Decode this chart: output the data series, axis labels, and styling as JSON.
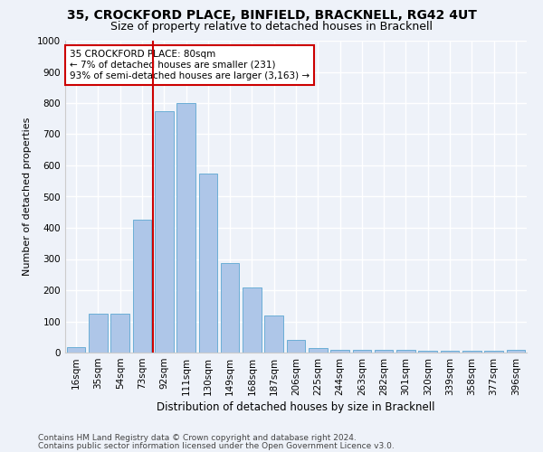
{
  "title1": "35, CROCKFORD PLACE, BINFIELD, BRACKNELL, RG42 4UT",
  "title2": "Size of property relative to detached houses in Bracknell",
  "xlabel": "Distribution of detached houses by size in Bracknell",
  "ylabel": "Number of detached properties",
  "categories": [
    "16sqm",
    "35sqm",
    "54sqm",
    "73sqm",
    "92sqm",
    "111sqm",
    "130sqm",
    "149sqm",
    "168sqm",
    "187sqm",
    "206sqm",
    "225sqm",
    "244sqm",
    "263sqm",
    "282sqm",
    "301sqm",
    "320sqm",
    "339sqm",
    "358sqm",
    "377sqm",
    "396sqm"
  ],
  "values": [
    18,
    125,
    125,
    425,
    775,
    800,
    575,
    287,
    210,
    120,
    40,
    15,
    10,
    8,
    8,
    10,
    5,
    5,
    5,
    5,
    10
  ],
  "bar_color": "#aec6e8",
  "bar_edge_color": "#6baed6",
  "vline_color": "#cc0000",
  "annotation_text": "35 CROCKFORD PLACE: 80sqm\n← 7% of detached houses are smaller (231)\n93% of semi-detached houses are larger (3,163) →",
  "annotation_box_color": "#ffffff",
  "annotation_box_edge": "#cc0000",
  "ylim": [
    0,
    1000
  ],
  "yticks": [
    0,
    100,
    200,
    300,
    400,
    500,
    600,
    700,
    800,
    900,
    1000
  ],
  "footer1": "Contains HM Land Registry data © Crown copyright and database right 2024.",
  "footer2": "Contains public sector information licensed under the Open Government Licence v3.0.",
  "bg_color": "#eef2f9",
  "grid_color": "#ffffff",
  "title1_fontsize": 10,
  "title2_fontsize": 9,
  "xlabel_fontsize": 8.5,
  "ylabel_fontsize": 8,
  "tick_fontsize": 7.5,
  "footer_fontsize": 6.5,
  "annotation_fontsize": 7.5
}
